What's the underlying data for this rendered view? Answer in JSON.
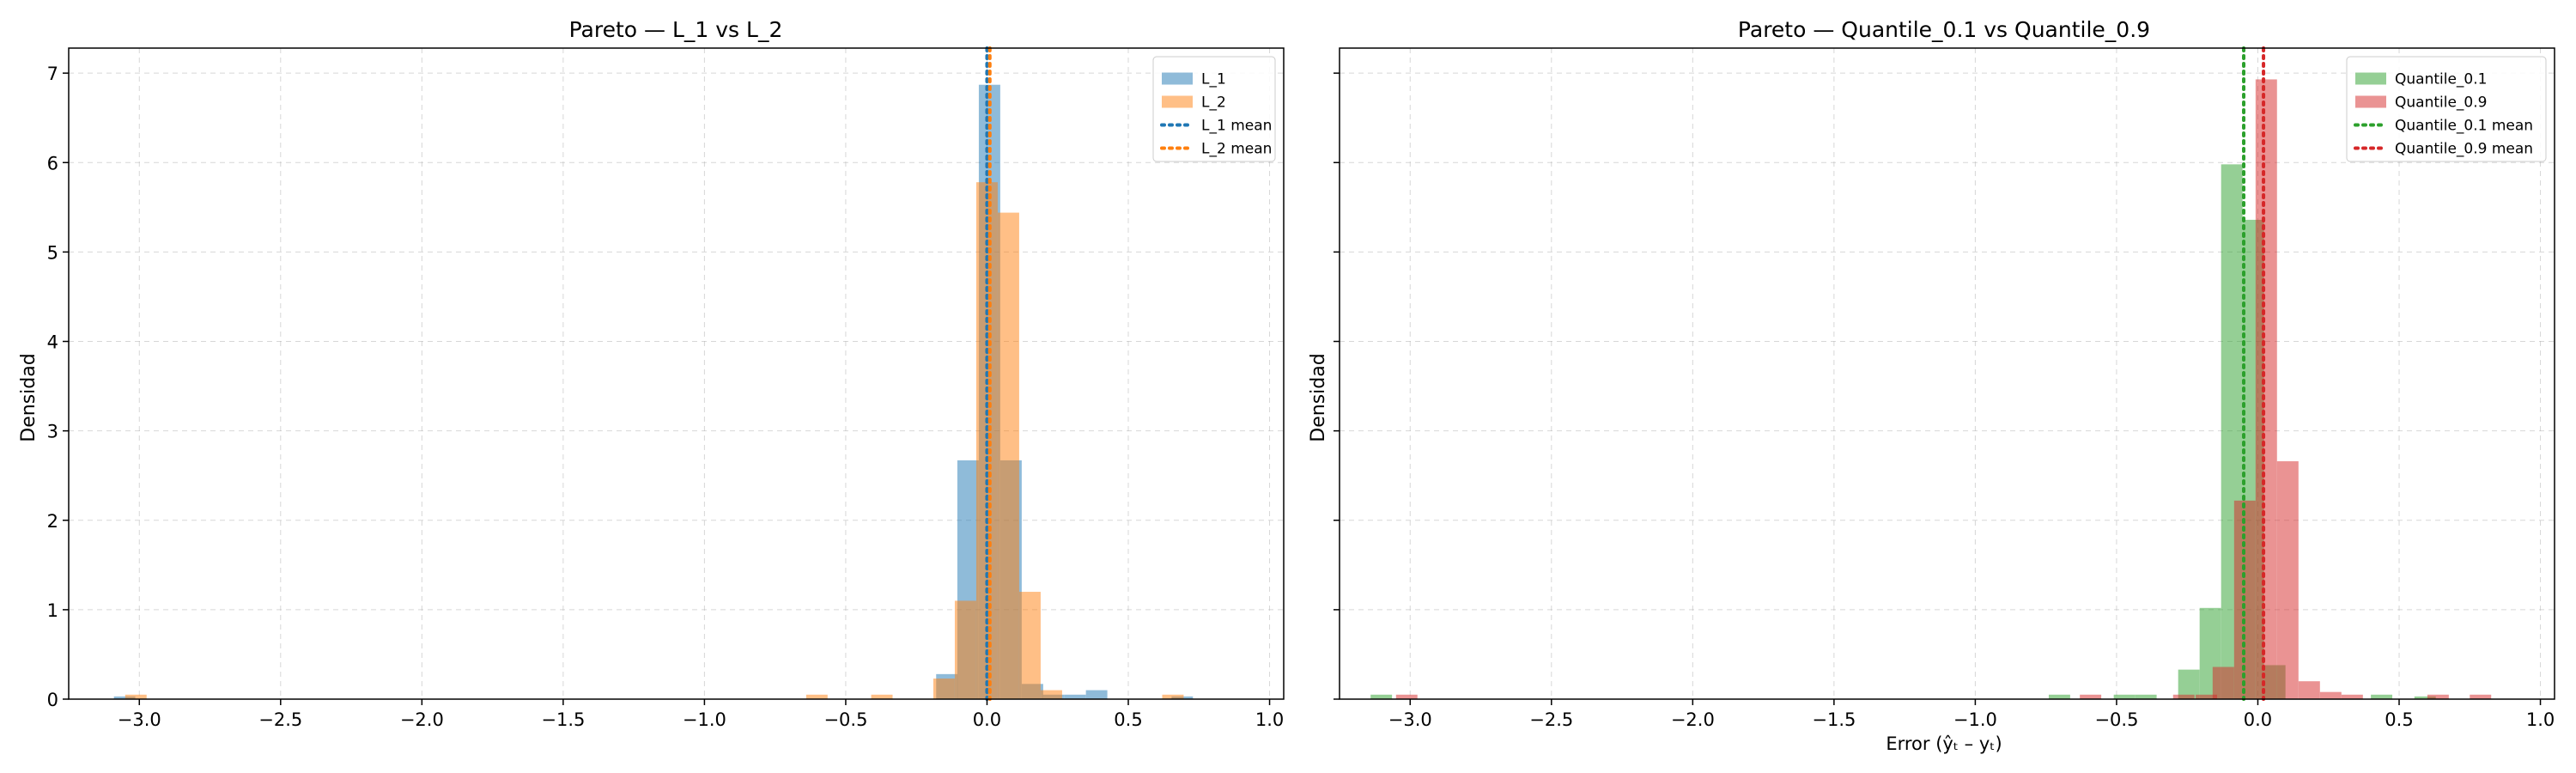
{
  "chart_data": [
    {
      "type": "histogram",
      "title": "Pareto — L_1 vs L_2",
      "xlabel": "",
      "ylabel": "Densidad",
      "xlim": [
        -3.25,
        1.05
      ],
      "ylim": [
        0,
        7.28
      ],
      "xticks": [
        -3.0,
        -2.5,
        -2.0,
        -1.5,
        -1.0,
        -0.5,
        0.0,
        0.5,
        1.0
      ],
      "xtick_labels": [
        "−3.0",
        "−2.5",
        "−2.0",
        "−1.5",
        "−1.0",
        "−0.5",
        "0.0",
        "0.5",
        "1.0"
      ],
      "yticks": [
        0,
        1,
        2,
        3,
        4,
        5,
        6,
        7
      ],
      "ytick_labels": [
        "0",
        "1",
        "2",
        "3",
        "4",
        "5",
        "6",
        "7"
      ],
      "grid": true,
      "legend_position": "top-right",
      "series": [
        {
          "name": "L_1",
          "color": "#1f77b4",
          "opacity": 0.5,
          "bin_width": 0.0758,
          "bins": [
            {
              "left": -3.09,
              "density": 0.03
            },
            {
              "left": -0.18,
              "density": 0.28
            },
            {
              "left": -0.105,
              "density": 2.67
            },
            {
              "left": -0.029,
              "density": 6.87
            },
            {
              "left": 0.047,
              "density": 2.67
            },
            {
              "left": 0.123,
              "density": 0.17
            },
            {
              "left": 0.198,
              "density": 0.05
            },
            {
              "left": 0.274,
              "density": 0.05
            },
            {
              "left": 0.35,
              "density": 0.1
            },
            {
              "left": 0.653,
              "density": 0.03
            }
          ]
        },
        {
          "name": "L_2",
          "color": "#ff7f0e",
          "opacity": 0.5,
          "bin_width": 0.0758,
          "bins": [
            {
              "left": -3.05,
              "density": 0.05
            },
            {
              "left": -0.64,
              "density": 0.05
            },
            {
              "left": -0.41,
              "density": 0.05
            },
            {
              "left": -0.19,
              "density": 0.23
            },
            {
              "left": -0.114,
              "density": 1.1
            },
            {
              "left": -0.038,
              "density": 5.78
            },
            {
              "left": 0.038,
              "density": 5.44
            },
            {
              "left": 0.114,
              "density": 1.2
            },
            {
              "left": 0.19,
              "density": 0.1
            },
            {
              "left": 0.62,
              "density": 0.05
            }
          ]
        }
      ],
      "mean_lines": [
        {
          "name": "L_1 mean",
          "x": 0.0,
          "color": "#1f77b4"
        },
        {
          "name": "L_2 mean",
          "x": 0.01,
          "color": "#ff7f0e"
        }
      ]
    },
    {
      "type": "histogram",
      "title": "Pareto — Quantile_0.1 vs Quantile_0.9",
      "xlabel": "Error (ŷₜ – yₜ)",
      "ylabel": "Densidad",
      "xlim": [
        -3.25,
        1.05
      ],
      "ylim": [
        0,
        7.28
      ],
      "xticks": [
        -3.0,
        -2.5,
        -2.0,
        -1.5,
        -1.0,
        -0.5,
        0.0,
        0.5,
        1.0
      ],
      "xtick_labels": [
        "−3.0",
        "−2.5",
        "−2.0",
        "−1.5",
        "−1.0",
        "−0.5",
        "0.0",
        "0.5",
        "1.0"
      ],
      "yticks": [
        0,
        1,
        2,
        3,
        4,
        5,
        6,
        7
      ],
      "ytick_labels": [
        "0",
        "1",
        "2",
        "3",
        "4",
        "5",
        "6",
        "7"
      ],
      "grid": true,
      "legend_position": "top-right",
      "series": [
        {
          "name": "Quantile_0.1",
          "color": "#2ca02c",
          "opacity": 0.5,
          "bin_width": 0.0758,
          "bins": [
            {
              "left": -3.14,
              "density": 0.05
            },
            {
              "left": -0.74,
              "density": 0.05
            },
            {
              "left": -0.51,
              "density": 0.05
            },
            {
              "left": -0.434,
              "density": 0.05
            },
            {
              "left": -0.282,
              "density": 0.33
            },
            {
              "left": -0.206,
              "density": 1.02
            },
            {
              "left": -0.13,
              "density": 5.98
            },
            {
              "left": -0.054,
              "density": 5.36
            },
            {
              "left": 0.022,
              "density": 0.38
            },
            {
              "left": 0.4,
              "density": 0.05
            },
            {
              "left": 0.554,
              "density": 0.03
            }
          ]
        },
        {
          "name": "Quantile_0.9",
          "color": "#d62728",
          "opacity": 0.5,
          "bin_width": 0.0758,
          "bins": [
            {
              "left": -3.05,
              "density": 0.05
            },
            {
              "left": -0.63,
              "density": 0.05
            },
            {
              "left": -0.3,
              "density": 0.05
            },
            {
              "left": -0.22,
              "density": 0.05
            },
            {
              "left": -0.16,
              "density": 0.36
            },
            {
              "left": -0.084,
              "density": 2.22
            },
            {
              "left": -0.008,
              "density": 6.93
            },
            {
              "left": 0.068,
              "density": 2.66
            },
            {
              "left": 0.144,
              "density": 0.2
            },
            {
              "left": 0.22,
              "density": 0.08
            },
            {
              "left": 0.296,
              "density": 0.05
            },
            {
              "left": 0.6,
              "density": 0.05
            },
            {
              "left": 0.75,
              "density": 0.05
            }
          ]
        }
      ],
      "mean_lines": [
        {
          "name": "Quantile_0.1 mean",
          "x": -0.05,
          "color": "#2ca02c"
        },
        {
          "name": "Quantile_0.9 mean",
          "x": 0.02,
          "color": "#d62728"
        }
      ]
    }
  ]
}
